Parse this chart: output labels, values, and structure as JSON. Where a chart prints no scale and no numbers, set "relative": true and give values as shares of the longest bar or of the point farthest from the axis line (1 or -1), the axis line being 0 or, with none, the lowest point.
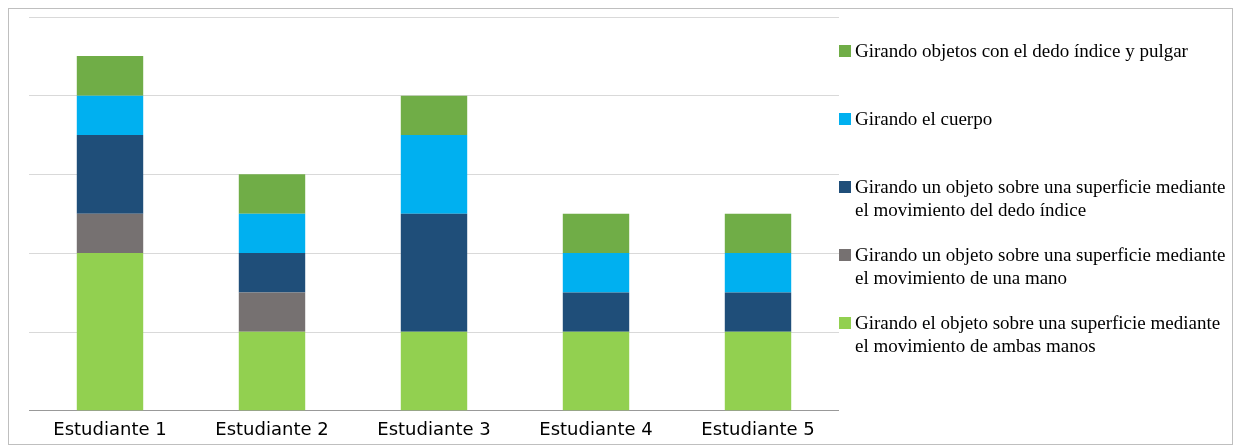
{
  "chart_data": {
    "type": "bar",
    "stacked": true,
    "relative": true,
    "grid": "y",
    "legend": "right",
    "categories": [
      "Estudiante 1",
      "Estudiante 2",
      "Estudiante 3",
      "Estudiante 4",
      "Estudiante 5"
    ],
    "series": [
      {
        "name": "Girando el objeto sobre una superficie mediante el movimiento de ambas manos",
        "color": "#92d050",
        "values": [
          0.444,
          0.222,
          0.222,
          0.222,
          0.222
        ]
      },
      {
        "name": "Girando un objeto sobre una superficie mediante el movimiento de una mano",
        "color": "#767171",
        "values": [
          0.111,
          0.111,
          null,
          null,
          null
        ]
      },
      {
        "name": "Girando un objeto sobre una superficie mediante el movimiento del dedo índice",
        "color": "#1f4e79",
        "values": [
          0.222,
          0.111,
          0.333,
          0.111,
          0.111
        ]
      },
      {
        "name": "Girando el cuerpo",
        "color": "#00b0f0",
        "values": [
          0.111,
          0.111,
          0.222,
          0.111,
          0.111
        ]
      },
      {
        "name": "Girando objetos con el dedo índice y pulgar",
        "color": "#70ad47",
        "values": [
          0.112,
          0.111,
          0.111,
          0.111,
          0.111
        ]
      }
    ]
  }
}
